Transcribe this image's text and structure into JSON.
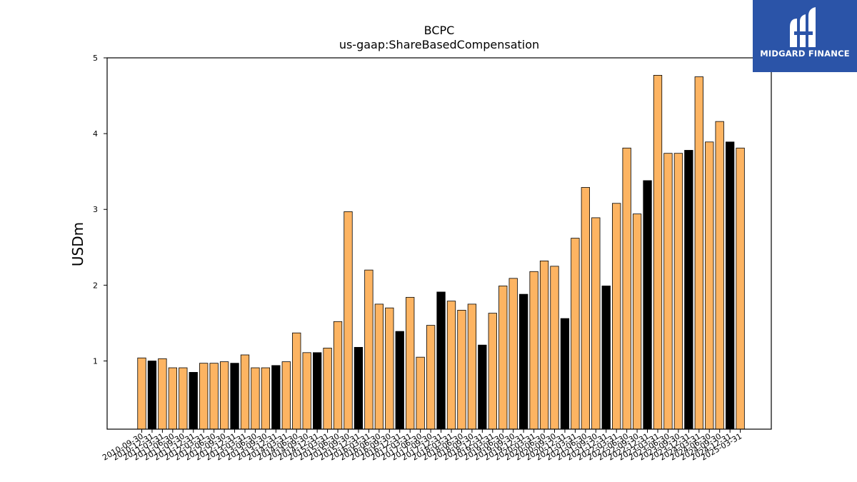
{
  "brand": {
    "name": "MIDGARD FINANCE",
    "bg_color": "#2b54a8"
  },
  "chart_data": {
    "type": "bar",
    "title": "BCPC",
    "subtitle": "us-gaap:ShareBasedCompensation",
    "ylabel": "USDm",
    "xlabel": "",
    "ylim": [
      0.1,
      5
    ],
    "yticks": [
      1,
      2,
      3,
      4,
      5
    ],
    "grid": false,
    "colors": {
      "quarter": "#fdb462",
      "annual": "#000000",
      "edge": "#000000"
    },
    "categories": [
      "2010-09-30",
      "2010-12-31",
      "2011-03-31",
      "2011-06-30",
      "2011-09-30",
      "2011-12-31",
      "2012-03-31",
      "2012-06-30",
      "2012-09-30",
      "2012-12-31",
      "2013-03-31",
      "2013-06-30",
      "2013-09-30",
      "2013-12-31",
      "2014-03-31",
      "2014-06-30",
      "2014-09-30",
      "2014-12-31",
      "2015-03-31",
      "2015-06-30",
      "2015-09-30",
      "2015-12-31",
      "2016-03-31",
      "2016-06-30",
      "2016-09-30",
      "2016-12-31",
      "2017-03-31",
      "2017-06-30",
      "2017-09-30",
      "2017-12-31",
      "2018-03-31",
      "2018-06-30",
      "2018-09-30",
      "2018-12-31",
      "2019-03-31",
      "2019-06-30",
      "2019-09-30",
      "2019-12-31",
      "2020-03-31",
      "2020-06-30",
      "2020-09-30",
      "2020-12-31",
      "2021-03-31",
      "2021-06-30",
      "2021-09-30",
      "2021-12-31",
      "2022-03-31",
      "2022-06-30",
      "2022-09-30",
      "2022-12-31",
      "2023-03-31",
      "2023-06-30",
      "2023-09-30",
      "2023-12-31",
      "2024-03-31",
      "2024-06-30",
      "2024-09-30",
      "2024-12-31",
      "2025-03-31"
    ],
    "values": [
      1.04,
      1.0,
      1.03,
      0.91,
      0.91,
      0.85,
      0.97,
      0.97,
      0.99,
      0.97,
      1.08,
      0.91,
      0.91,
      0.94,
      0.99,
      1.37,
      1.11,
      1.11,
      1.17,
      1.52,
      2.97,
      1.18,
      2.2,
      1.75,
      1.7,
      1.39,
      1.84,
      1.05,
      1.47,
      1.91,
      1.79,
      1.67,
      1.75,
      1.21,
      1.63,
      1.99,
      2.09,
      1.88,
      2.18,
      2.32,
      2.25,
      1.56,
      2.62,
      3.29,
      2.89,
      1.99,
      3.08,
      3.81,
      2.94,
      3.38,
      4.77,
      3.74,
      3.74,
      3.78,
      4.75,
      3.89,
      4.16,
      3.89,
      3.81
    ],
    "annual_flags": [
      false,
      true,
      false,
      false,
      false,
      true,
      false,
      false,
      false,
      true,
      false,
      false,
      false,
      true,
      false,
      false,
      false,
      true,
      false,
      false,
      false,
      true,
      false,
      false,
      false,
      true,
      false,
      false,
      false,
      true,
      false,
      false,
      false,
      true,
      false,
      false,
      false,
      true,
      false,
      false,
      false,
      true,
      false,
      false,
      false,
      true,
      false,
      false,
      false,
      true,
      false,
      false,
      false,
      true,
      false,
      false,
      false,
      true,
      false
    ]
  }
}
